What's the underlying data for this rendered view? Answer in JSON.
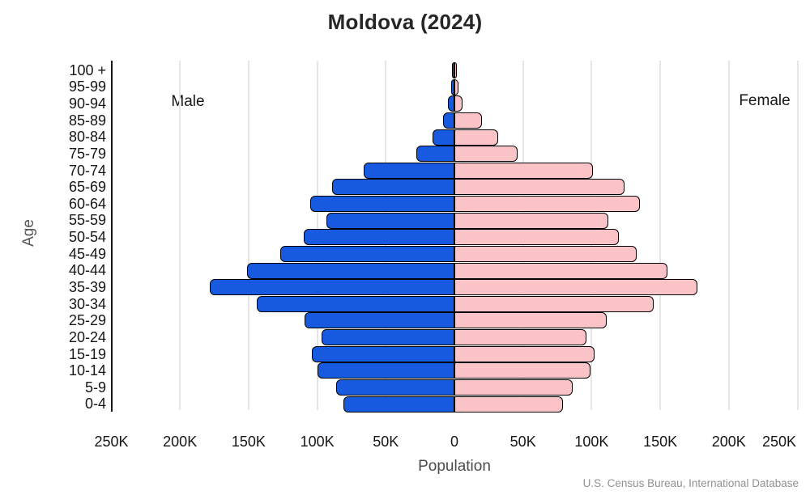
{
  "title": "Moldova (2024)",
  "source": "U.S. Census Bureau, International Database",
  "labels": {
    "male": "Male",
    "female": "Female"
  },
  "colors": {
    "male_bar": "#175AE0",
    "female_bar": "#F9C3C8",
    "bar_outline": "#000000",
    "gridline": "#e6e6e6",
    "axis_line": "#161616",
    "background": "#ffffff"
  },
  "chart_data": {
    "type": "bar",
    "subtype": "population_pyramid",
    "title": "Moldova (2024)",
    "xlabel": "Population",
    "ylabel": "Age",
    "unit": "persons",
    "grid": true,
    "x_max_each_side": 250000,
    "x_tick_step": 50000,
    "x_tick_labels_left_to_right": [
      "250K",
      "200K",
      "150K",
      "100K",
      "50K",
      "0",
      "50K",
      "100K",
      "150K",
      "200K",
      "250K"
    ],
    "categories_top_to_bottom": [
      "100 +",
      "95-99",
      "90-94",
      "85-89",
      "80-84",
      "75-79",
      "70-74",
      "65-69",
      "60-64",
      "55-59",
      "50-54",
      "45-49",
      "40-44",
      "35-39",
      "30-34",
      "25-29",
      "20-24",
      "15-19",
      "10-14",
      "5-9",
      "0-4"
    ],
    "series": [
      {
        "name": "Male",
        "side": "left",
        "color": "#175AE0",
        "values": [
          1500,
          2500,
          4500,
          8000,
          16000,
          28000,
          66000,
          89000,
          105000,
          93000,
          110000,
          127000,
          151000,
          178000,
          144000,
          109000,
          97000,
          104000,
          100000,
          86000,
          81000
        ]
      },
      {
        "name": "Female",
        "side": "right",
        "color": "#F9C3C8",
        "values": [
          1500,
          3000,
          6000,
          20000,
          32000,
          46000,
          101000,
          124000,
          135000,
          112000,
          120000,
          133000,
          155000,
          177000,
          145000,
          111000,
          96000,
          102000,
          99000,
          86000,
          79000
        ]
      }
    ]
  }
}
